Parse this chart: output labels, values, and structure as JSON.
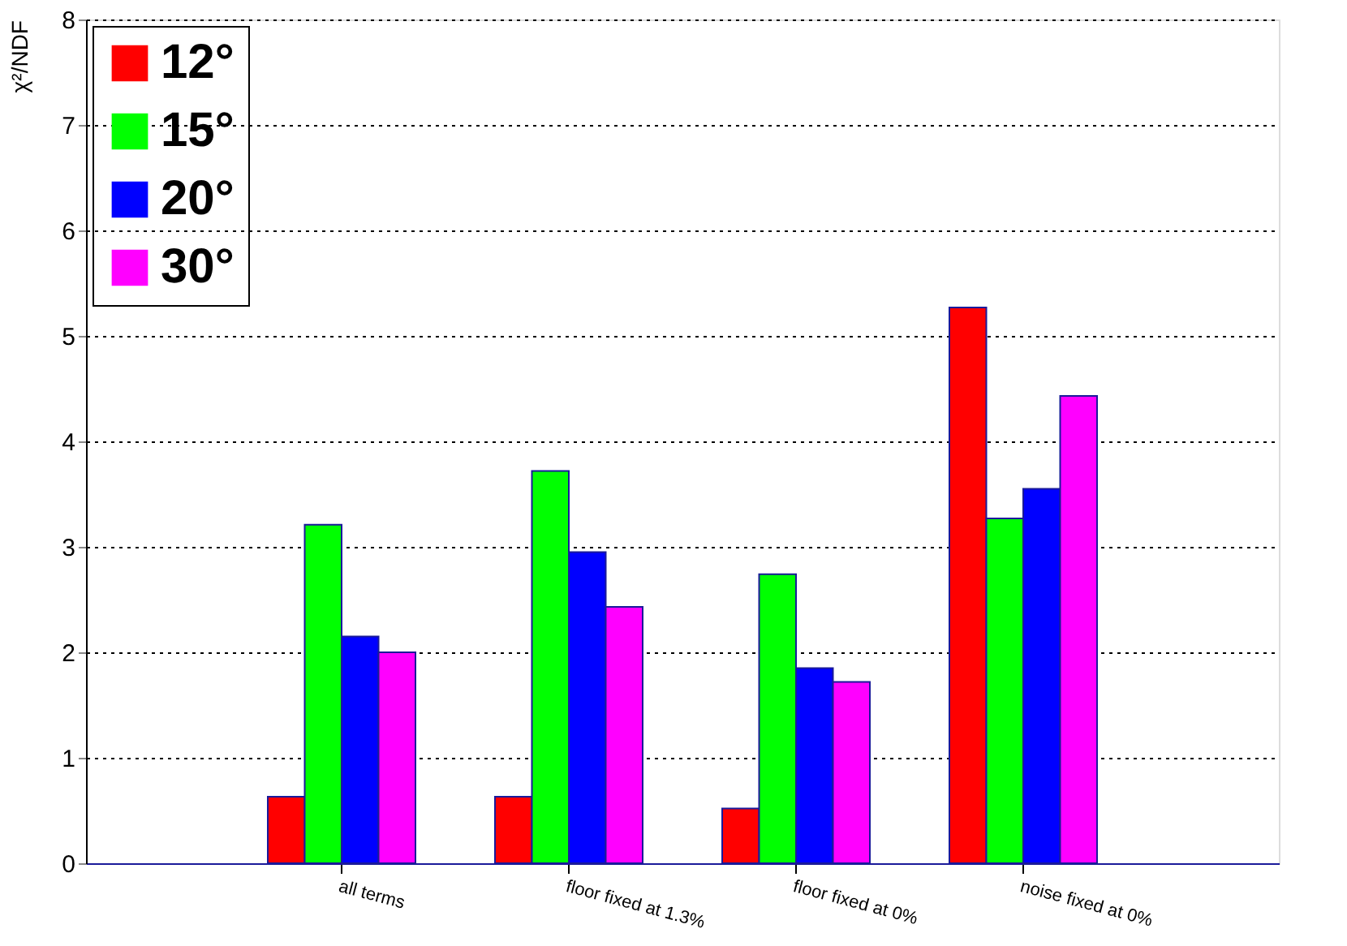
{
  "chart_data": {
    "type": "bar",
    "ylabel": "χ²/NDF",
    "categories": [
      "all terms",
      "floor fixed at 1.3%",
      "floor fixed at 0%",
      "noise fixed at 0%"
    ],
    "series": [
      {
        "name": "12°",
        "color": "#ff0000",
        "values": [
          0.63,
          0.63,
          0.52,
          5.27
        ]
      },
      {
        "name": "15°",
        "color": "#00ff00",
        "values": [
          3.21,
          3.72,
          2.74,
          3.27
        ]
      },
      {
        "name": "20°",
        "color": "#0000ff",
        "values": [
          2.15,
          2.95,
          1.85,
          3.55
        ]
      },
      {
        "name": "30°",
        "color": "#ff00ff",
        "values": [
          2.0,
          2.43,
          1.72,
          4.43
        ]
      }
    ],
    "ylim": [
      0,
      8
    ],
    "yticks": [
      0,
      1,
      2,
      3,
      4,
      5,
      6,
      7,
      8
    ],
    "grid": "y",
    "legend": "top left"
  }
}
